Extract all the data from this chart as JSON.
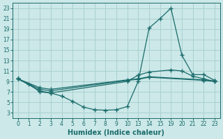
{
  "xlabel": "Humidex (Indice chaleur)",
  "bg_color": "#cce8e8",
  "line_color": "#1a6b6b",
  "grid_color": "#aad0d0",
  "xtick_labels": [
    "0",
    "1",
    "2",
    "3",
    "4",
    "5",
    "6",
    "7",
    "8",
    "9",
    "10",
    "13",
    "14",
    "15",
    "19",
    "20",
    "21",
    "22",
    "23"
  ],
  "yticks": [
    3,
    5,
    7,
    9,
    11,
    13,
    15,
    17,
    19,
    21,
    23
  ],
  "series": [
    {
      "xi": [
        0,
        1,
        2,
        3,
        4,
        5,
        6,
        7,
        8,
        9,
        10,
        11,
        12,
        13,
        14,
        15,
        16,
        17,
        18
      ],
      "y": [
        9.5,
        8.5,
        7.0,
        6.8,
        6.2,
        5.2,
        4.1,
        3.6,
        3.5,
        3.6,
        4.2,
        9.0,
        19.2,
        21.0,
        23.0,
        14.0,
        10.3,
        10.3,
        9.2
      ]
    },
    {
      "xi": [
        0,
        2,
        3,
        10,
        11,
        12,
        14,
        15,
        16,
        17,
        18
      ],
      "y": [
        9.5,
        7.2,
        6.8,
        9.0,
        10.2,
        10.8,
        11.2,
        11.0,
        10.0,
        9.5,
        9.0
      ]
    },
    {
      "xi": [
        0,
        2,
        3,
        10,
        11,
        12,
        17,
        18
      ],
      "y": [
        9.5,
        7.5,
        7.2,
        9.2,
        9.4,
        9.8,
        9.2,
        9.0
      ]
    },
    {
      "xi": [
        0,
        2,
        3,
        10,
        11,
        12,
        17,
        18
      ],
      "y": [
        9.5,
        7.8,
        7.5,
        9.3,
        9.5,
        9.9,
        9.3,
        9.1
      ]
    }
  ],
  "xlim": [
    -0.5,
    18.5
  ],
  "ylim": [
    2,
    24
  ],
  "figsize": [
    3.2,
    2.0
  ],
  "dpi": 100
}
